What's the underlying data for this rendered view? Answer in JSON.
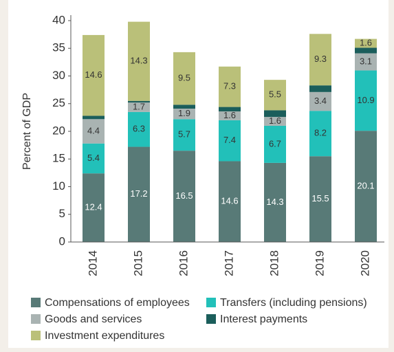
{
  "chart_data": {
    "type": "stacked_bar",
    "y_axis_label": "Percent of GDP",
    "categories": [
      "2014",
      "2015",
      "2016",
      "2017",
      "2018",
      "2019",
      "2020"
    ],
    "series": [
      {
        "name": "Compensations of employees",
        "color": "#587a77",
        "label_color": "#ffffff",
        "values": [
          12.4,
          17.2,
          16.5,
          14.6,
          14.3,
          15.5,
          20.1
        ]
      },
      {
        "name": "Transfers (including pensions)",
        "color": "#22c0b9",
        "label_color": "#333333",
        "values": [
          5.4,
          6.3,
          5.7,
          7.4,
          6.7,
          8.2,
          10.9
        ]
      },
      {
        "name": "Goods and services",
        "color": "#a9b3b2",
        "label_color": "#333333",
        "values": [
          4.4,
          1.7,
          1.9,
          1.6,
          1.6,
          3.4,
          3.1
        ]
      },
      {
        "name": "Interest payments",
        "color": "#1b5e5b",
        "values": [
          0.6,
          0.3,
          0.7,
          0.8,
          1.2,
          1.2,
          1.0
        ]
      },
      {
        "name": "Investment expenditures",
        "color": "#bac079",
        "label_color": "#333333",
        "values": [
          14.6,
          14.3,
          9.5,
          7.3,
          5.5,
          9.3,
          1.6
        ]
      }
    ],
    "labeled_series": [
      0,
      1,
      2,
      4
    ],
    "ylim": [
      0,
      40
    ],
    "yticks": [
      0,
      5,
      10,
      15,
      20,
      25,
      30,
      35,
      40
    ]
  }
}
